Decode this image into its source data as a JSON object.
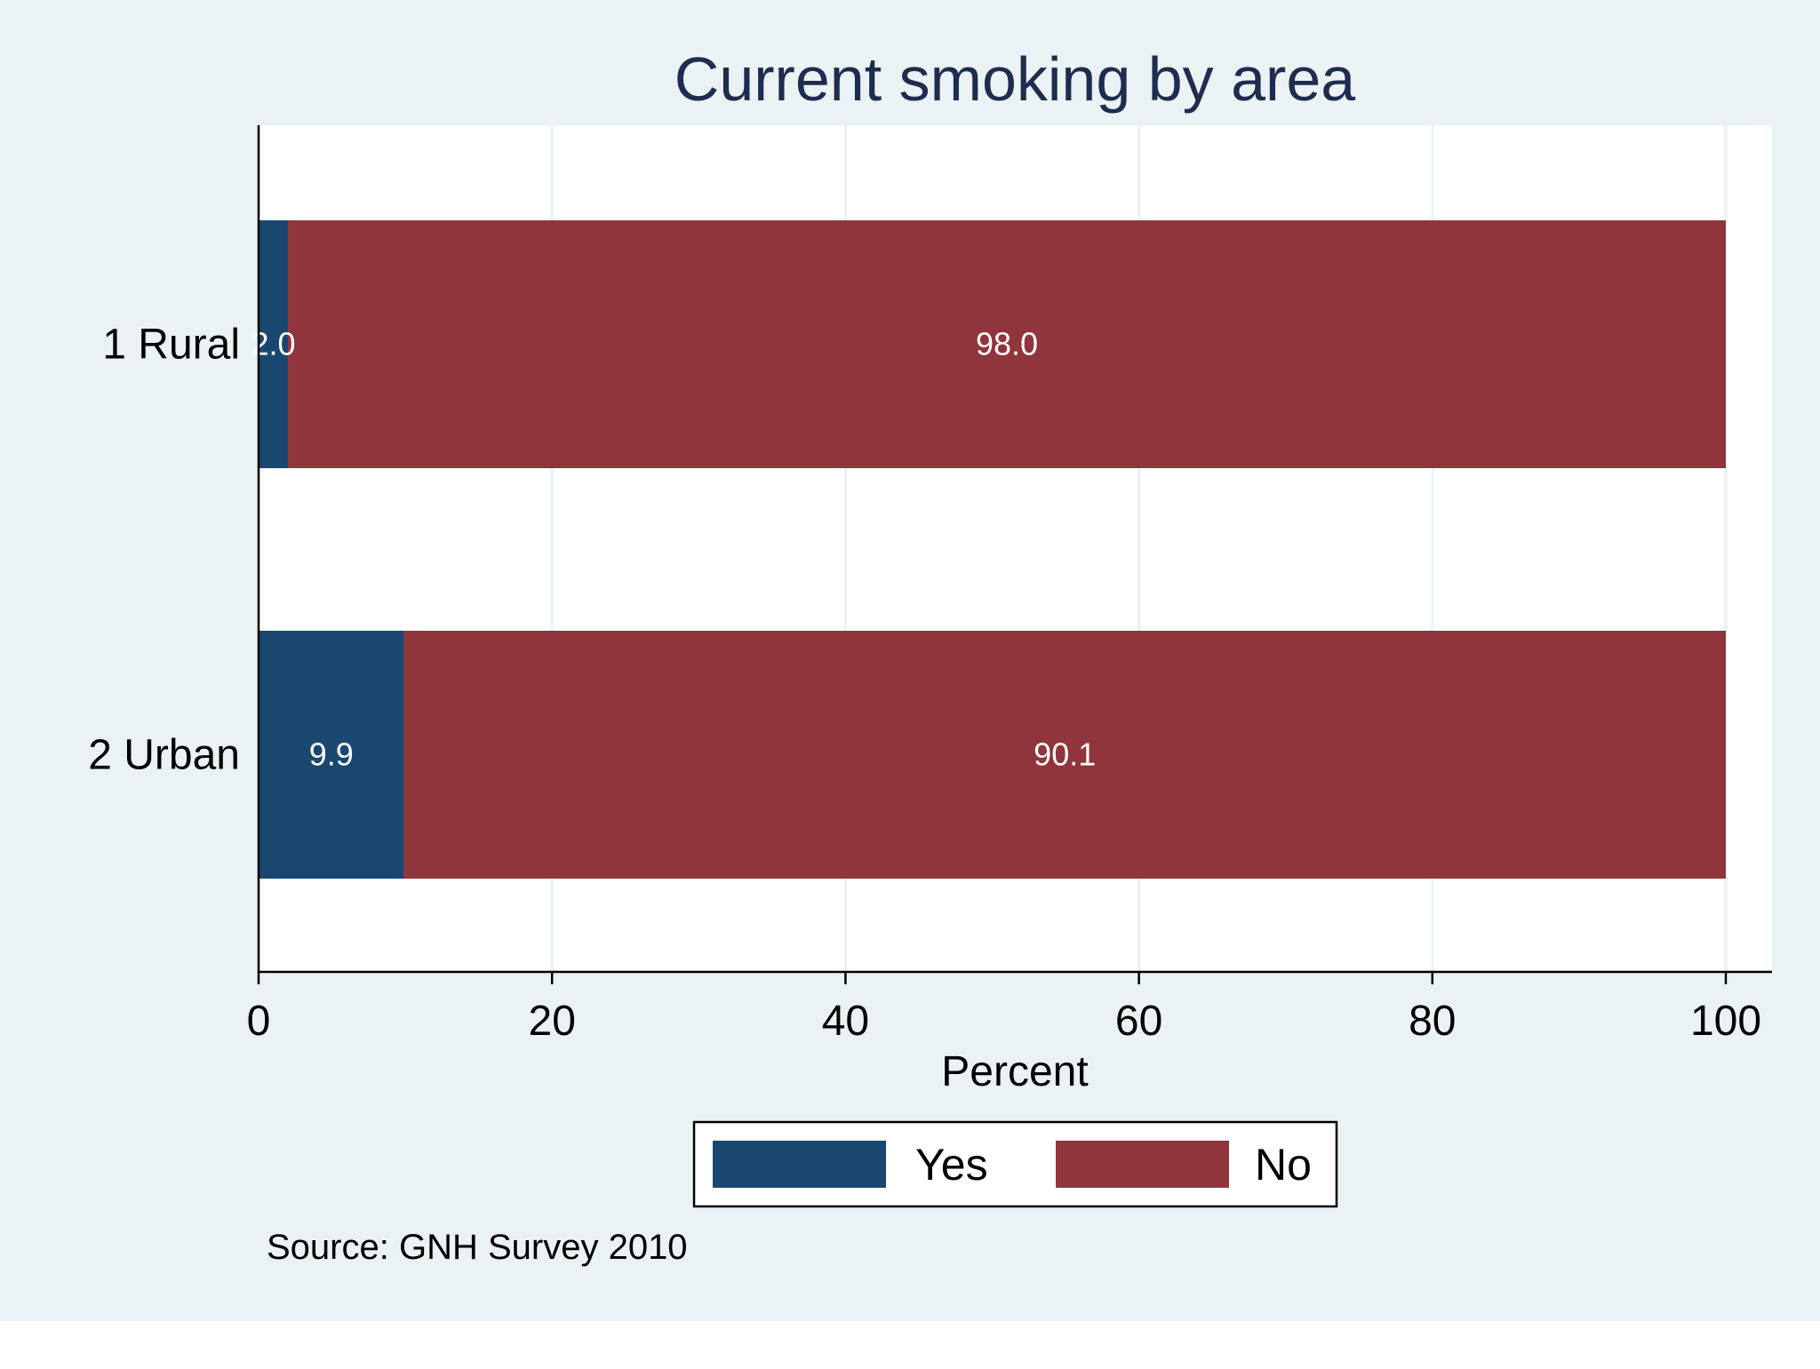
{
  "chart_data": {
    "type": "bar",
    "orientation": "horizontal",
    "stacked": true,
    "title": "Current smoking by area",
    "xlabel": "Percent",
    "xlim": [
      0,
      100
    ],
    "xticks": [
      0,
      20,
      40,
      60,
      80,
      100
    ],
    "categories": [
      "1 Rural",
      "2 Urban"
    ],
    "series": [
      {
        "name": "Yes",
        "values": [
          2.0,
          9.9
        ],
        "labels": [
          "2.0",
          "9.9"
        ],
        "color": "#1a476f"
      },
      {
        "name": "No",
        "values": [
          98.0,
          90.1
        ],
        "labels": [
          "98.0",
          "90.1"
        ],
        "color": "#90353b"
      }
    ],
    "grid": true,
    "legend_position": "bottom",
    "note": "Source: GNH Survey 2010"
  },
  "colors": {
    "background": "#eaf2f3",
    "plot_background": "#ffffff",
    "gridline": "#eaf2f3",
    "title": "#1e2c4f",
    "text": "#000000",
    "value_label": "#ffffff"
  }
}
